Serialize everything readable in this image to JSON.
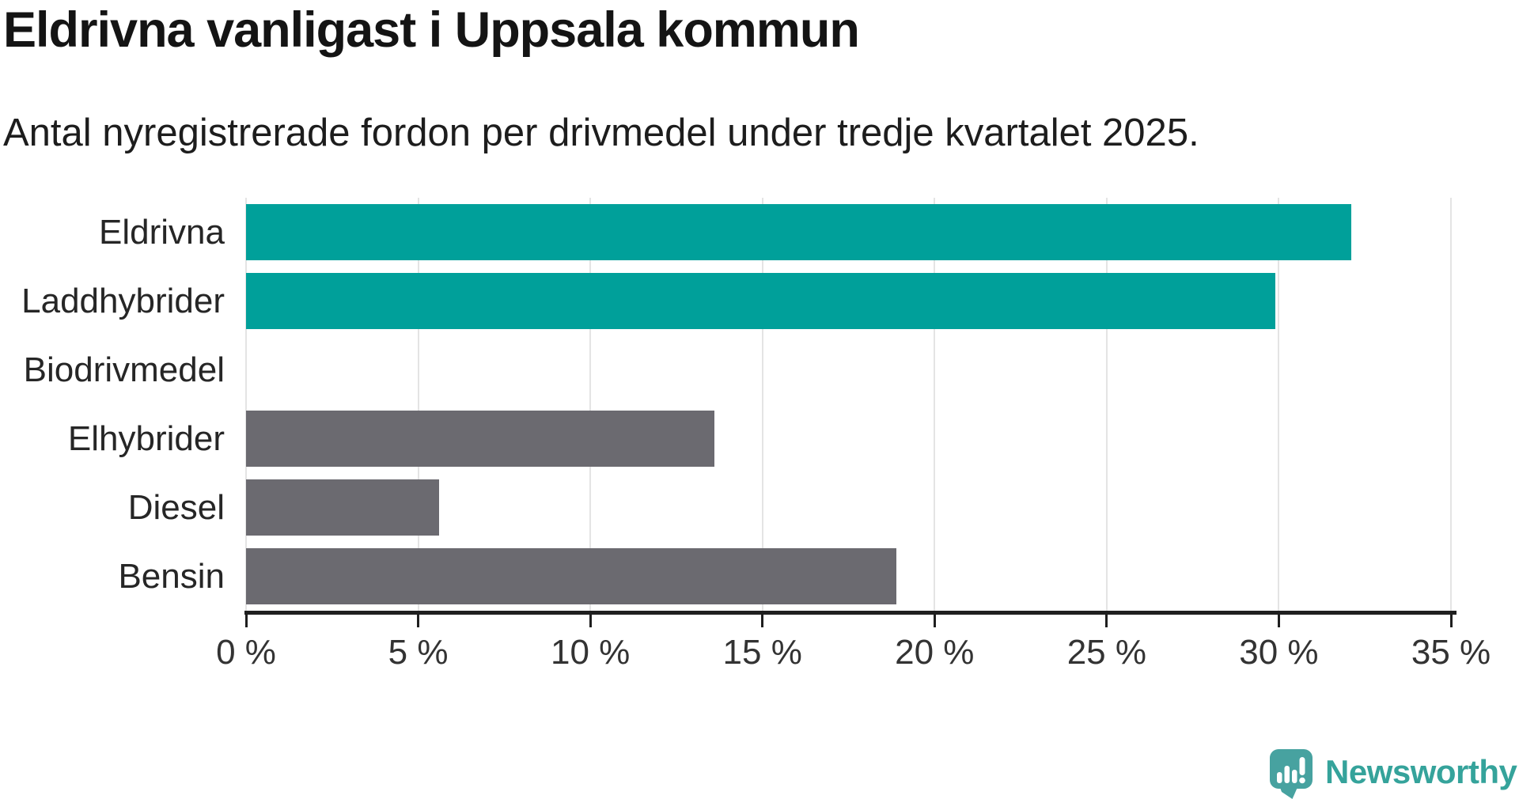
{
  "title": "Eldrivna vanligast i Uppsala kommun",
  "subtitle": "Antal nyregistrerade fordon per drivmedel under tredje kvartalet 2025.",
  "chart_data": {
    "type": "bar",
    "orientation": "horizontal",
    "title": "Eldrivna vanligast i Uppsala kommun",
    "subtitle": "Antal nyregistrerade fordon per drivmedel under tredje kvartalet 2025.",
    "categories": [
      "Eldrivna",
      "Laddhybrider",
      "Biodrivmedel",
      "Elhybrider",
      "Diesel",
      "Bensin"
    ],
    "values": [
      32.1,
      29.9,
      0,
      13.6,
      5.6,
      18.9
    ],
    "unit": "%",
    "xlabel": "",
    "ylabel": "",
    "xlim": [
      0,
      35
    ],
    "xticks": [
      0,
      5,
      10,
      15,
      20,
      25,
      30,
      35
    ],
    "xtick_labels": [
      "0 %",
      "5 %",
      "10 %",
      "15 %",
      "20 %",
      "25 %",
      "30 %",
      "35 %"
    ],
    "grid": true,
    "legend": "none",
    "bar_colors": [
      "#00a09a",
      "#00a09a",
      "#6b6a70",
      "#6b6a70",
      "#6b6a70",
      "#6b6a70"
    ],
    "accent_color": "#00a09a",
    "default_bar_color": "#6b6a70",
    "grid_color": "#e4e4e4",
    "axis_color": "#1f1f1f"
  },
  "branding": {
    "logo_text": "Newsworthy",
    "logo_text_color": "#35a39b",
    "logo_icon": "newsworthy-speech-bubble-barchart-icon",
    "logo_icon_color": "#47a2a0"
  }
}
